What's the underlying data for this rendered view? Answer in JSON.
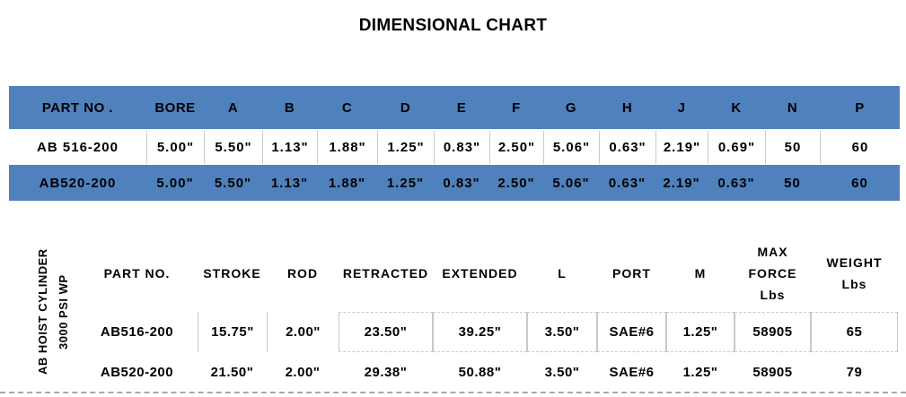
{
  "title": "DIMENSIONAL CHART",
  "colors": {
    "accent_blue": "#4f81bd",
    "border_gray": "#c9c9c9",
    "dash_gray": "#a8a8a8"
  },
  "dimensional_table": {
    "columns": [
      "PART NO .",
      "BORE",
      "A",
      "B",
      "C",
      "D",
      "E",
      "F",
      "G",
      "H",
      "J",
      "K",
      "N",
      "P"
    ],
    "rows": [
      [
        "AB 516-200",
        "5.00\"",
        "5.50\"",
        "1.13\"",
        "1.88\"",
        "1.25\"",
        "0.83\"",
        "2.50\"",
        "5.06\"",
        "0.63\"",
        "2.19\"",
        "0.69\"",
        "50",
        "60"
      ],
      [
        "AB520-200",
        "5.00\"",
        "5.50\"",
        "1.13\"",
        "1.88\"",
        "1.25\"",
        "0.83\"",
        "2.50\"",
        "5.06\"",
        "0.63\"",
        "2.19\"",
        "0.63\"",
        "50",
        "60"
      ]
    ]
  },
  "spec_table": {
    "side_label": "AB HOIST CYLINDER\n3000 PSI WP",
    "columns": [
      "PART NO.",
      "STROKE",
      "ROD",
      "RETRACTED",
      "EXTENDED",
      "L",
      "PORT",
      "M",
      "MAX\nFORCE\nLbs",
      "WEIGHT\nLbs"
    ],
    "rows": [
      [
        "AB516-200",
        "15.75\"",
        "2.00\"",
        "23.50\"",
        "39.25\"",
        "3.50\"",
        "SAE#6",
        "1.25\"",
        "58905",
        "65"
      ],
      [
        "AB520-200",
        "21.50\"",
        "2.00\"",
        "29.38\"",
        "50.88\"",
        "3.50\"",
        "SAE#6",
        "1.25\"",
        "58905",
        "79"
      ]
    ]
  }
}
